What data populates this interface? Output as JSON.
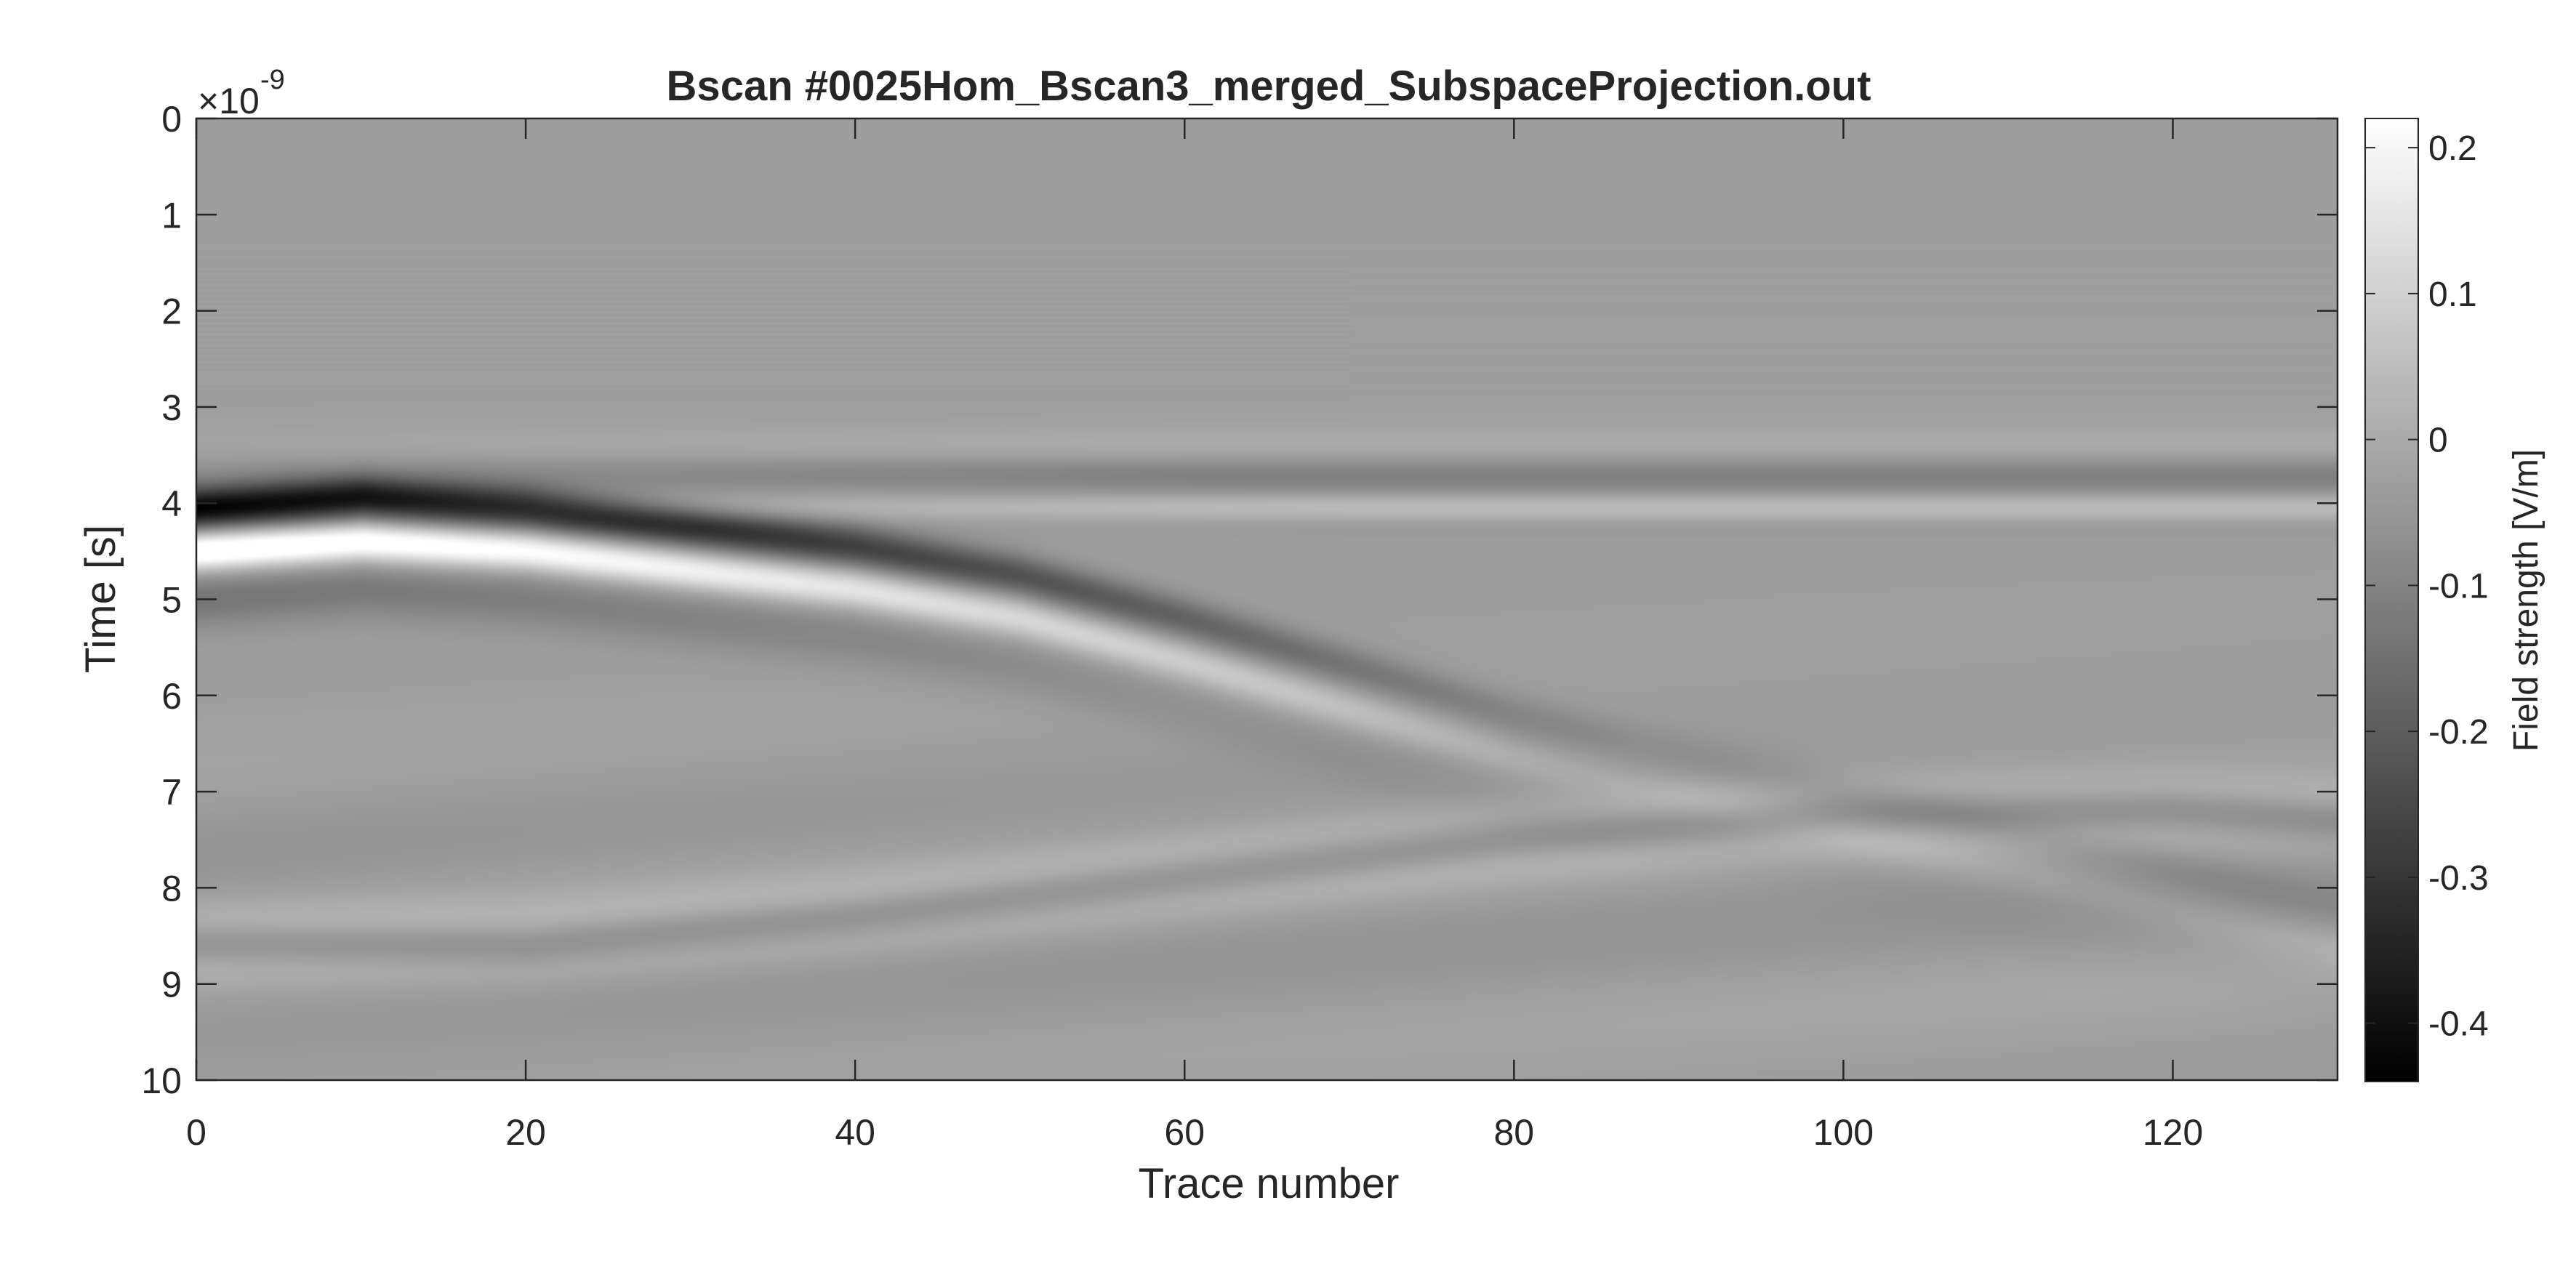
{
  "chart_data": {
    "type": "heatmap",
    "title": "Bscan #0025Hom_Bscan3_merged_SubspaceProjection.out",
    "xlabel": "Trace number",
    "ylabel": "Time [s]",
    "y_exponent_base": "×10",
    "y_exponent_power": "-9",
    "xlim": [
      0,
      130
    ],
    "ylim": [
      0,
      10
    ],
    "x_ticks": [
      0,
      20,
      40,
      60,
      80,
      100,
      120
    ],
    "x_tick_labels": [
      "0",
      "20",
      "40",
      "60",
      "80",
      "100",
      "120"
    ],
    "y_ticks": [
      0,
      1,
      2,
      3,
      4,
      5,
      6,
      7,
      8,
      9,
      10
    ],
    "y_tick_labels": [
      "0",
      "1",
      "2",
      "3",
      "4",
      "5",
      "6",
      "7",
      "8",
      "9",
      "10"
    ],
    "y_direction": "reverse",
    "grid": false,
    "colormap": "gray",
    "colorbar": {
      "label": "Field strength [V/m]",
      "clim": [
        -0.44,
        0.22
      ],
      "ticks": [
        0.2,
        0.1,
        0,
        -0.1,
        -0.2,
        -0.3,
        -0.4
      ],
      "tick_labels": [
        "0.2",
        "0.1",
        "0",
        "-0.1",
        "-0.2",
        "-0.3",
        "-0.4"
      ],
      "placement": "right"
    },
    "features": {
      "direct_wave": {
        "time_ns": 3.7,
        "trace_range": [
          0,
          130
        ]
      },
      "main_hyperbola_apex": {
        "trace": 10,
        "time_ns": 4.0
      },
      "main_hyperbola_points": [
        [
          0,
          4.05
        ],
        [
          10,
          3.95
        ],
        [
          20,
          4.05
        ],
        [
          30,
          4.25
        ],
        [
          40,
          4.45
        ],
        [
          50,
          4.75
        ],
        [
          60,
          5.2
        ],
        [
          70,
          5.7
        ],
        [
          80,
          6.2
        ],
        [
          90,
          6.6
        ]
      ],
      "lower_reflection_points": [
        [
          20,
          8.6
        ],
        [
          40,
          8.3
        ],
        [
          60,
          7.9
        ],
        [
          80,
          7.5
        ],
        [
          100,
          7.25
        ],
        [
          120,
          7.2
        ],
        [
          130,
          7.3
        ]
      ]
    }
  }
}
